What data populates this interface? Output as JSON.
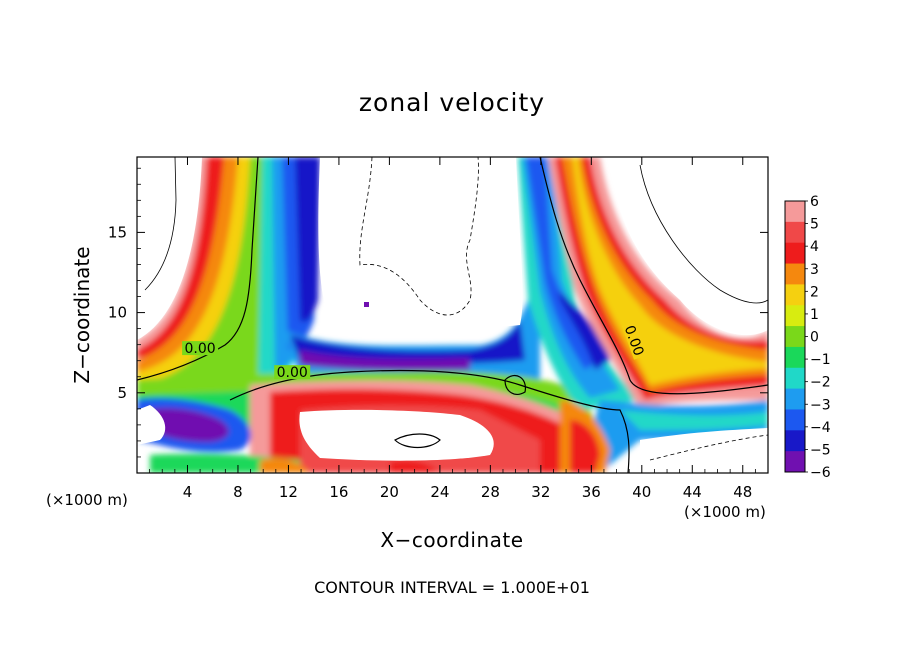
{
  "chart_data": {
    "type": "heatmap",
    "title": "zonal velocity",
    "xlabel": "X−coordinate",
    "ylabel": "Z−coordinate",
    "x_unit_left": "(×1000 m)",
    "x_unit_right": "(×1000 m)",
    "footer": "CONTOUR INTERVAL = 1.000E+01",
    "xlim": [
      0,
      50
    ],
    "ylim": [
      0,
      19.7
    ],
    "xticks": [
      4,
      8,
      12,
      16,
      20,
      24,
      28,
      32,
      36,
      40,
      44,
      48
    ],
    "xtick_labels": [
      "4",
      "8",
      "12",
      "16",
      "20",
      "24",
      "28",
      "32",
      "36",
      "40",
      "44",
      "48"
    ],
    "yticks": [
      5,
      10,
      15
    ],
    "ytick_labels": [
      "5",
      "10",
      "15"
    ],
    "colorbar": {
      "levels": [
        6,
        5,
        4,
        3,
        2,
        1,
        0,
        -1,
        -2,
        -3,
        -4,
        -5,
        -6
      ],
      "labels": [
        "6",
        "5",
        "4",
        "3",
        "2",
        "1",
        "0",
        "−1",
        "−2",
        "−3",
        "−4",
        "−5",
        "−6"
      ],
      "colors": [
        "#f59a9a",
        "#f04848",
        "#ee1c1c",
        "#f5880e",
        "#f5d010",
        "#d8ec10",
        "#7ad81a",
        "#1ad85a",
        "#20d8c8",
        "#1e9cf0",
        "#1c58f0",
        "#1818c8",
        "#7010b0"
      ]
    },
    "contour_labels": [
      {
        "text": "0.00",
        "x": 5.0,
        "z": 7.6
      },
      {
        "text": "0.00",
        "x": 12.3,
        "z": 6.1
      },
      {
        "text": "0.00",
        "x": 39.2,
        "z": 8.2
      }
    ],
    "features": [
      {
        "name": "westward-jet-column",
        "x_range": [
          9,
          14
        ],
        "z_range": [
          5,
          19.7
        ],
        "u": -5
      },
      {
        "name": "eastward-jet-column",
        "x_range": [
          5.5,
          9
        ],
        "z_range": [
          6,
          19.7
        ],
        "u": 5
      },
      {
        "name": "westward-jet-column-2",
        "x_range": [
          29.5,
          34
        ],
        "z_range": [
          5,
          19.7
        ],
        "u": -4
      },
      {
        "name": "eastward-jet-column-2",
        "x_range": [
          34,
          41
        ],
        "z_range": [
          8,
          19.7
        ],
        "u": 5
      },
      {
        "name": "surface-eastward-flow",
        "x_range": [
          10,
          40
        ],
        "z_range": [
          0,
          5
        ],
        "u": 5
      }
    ]
  }
}
